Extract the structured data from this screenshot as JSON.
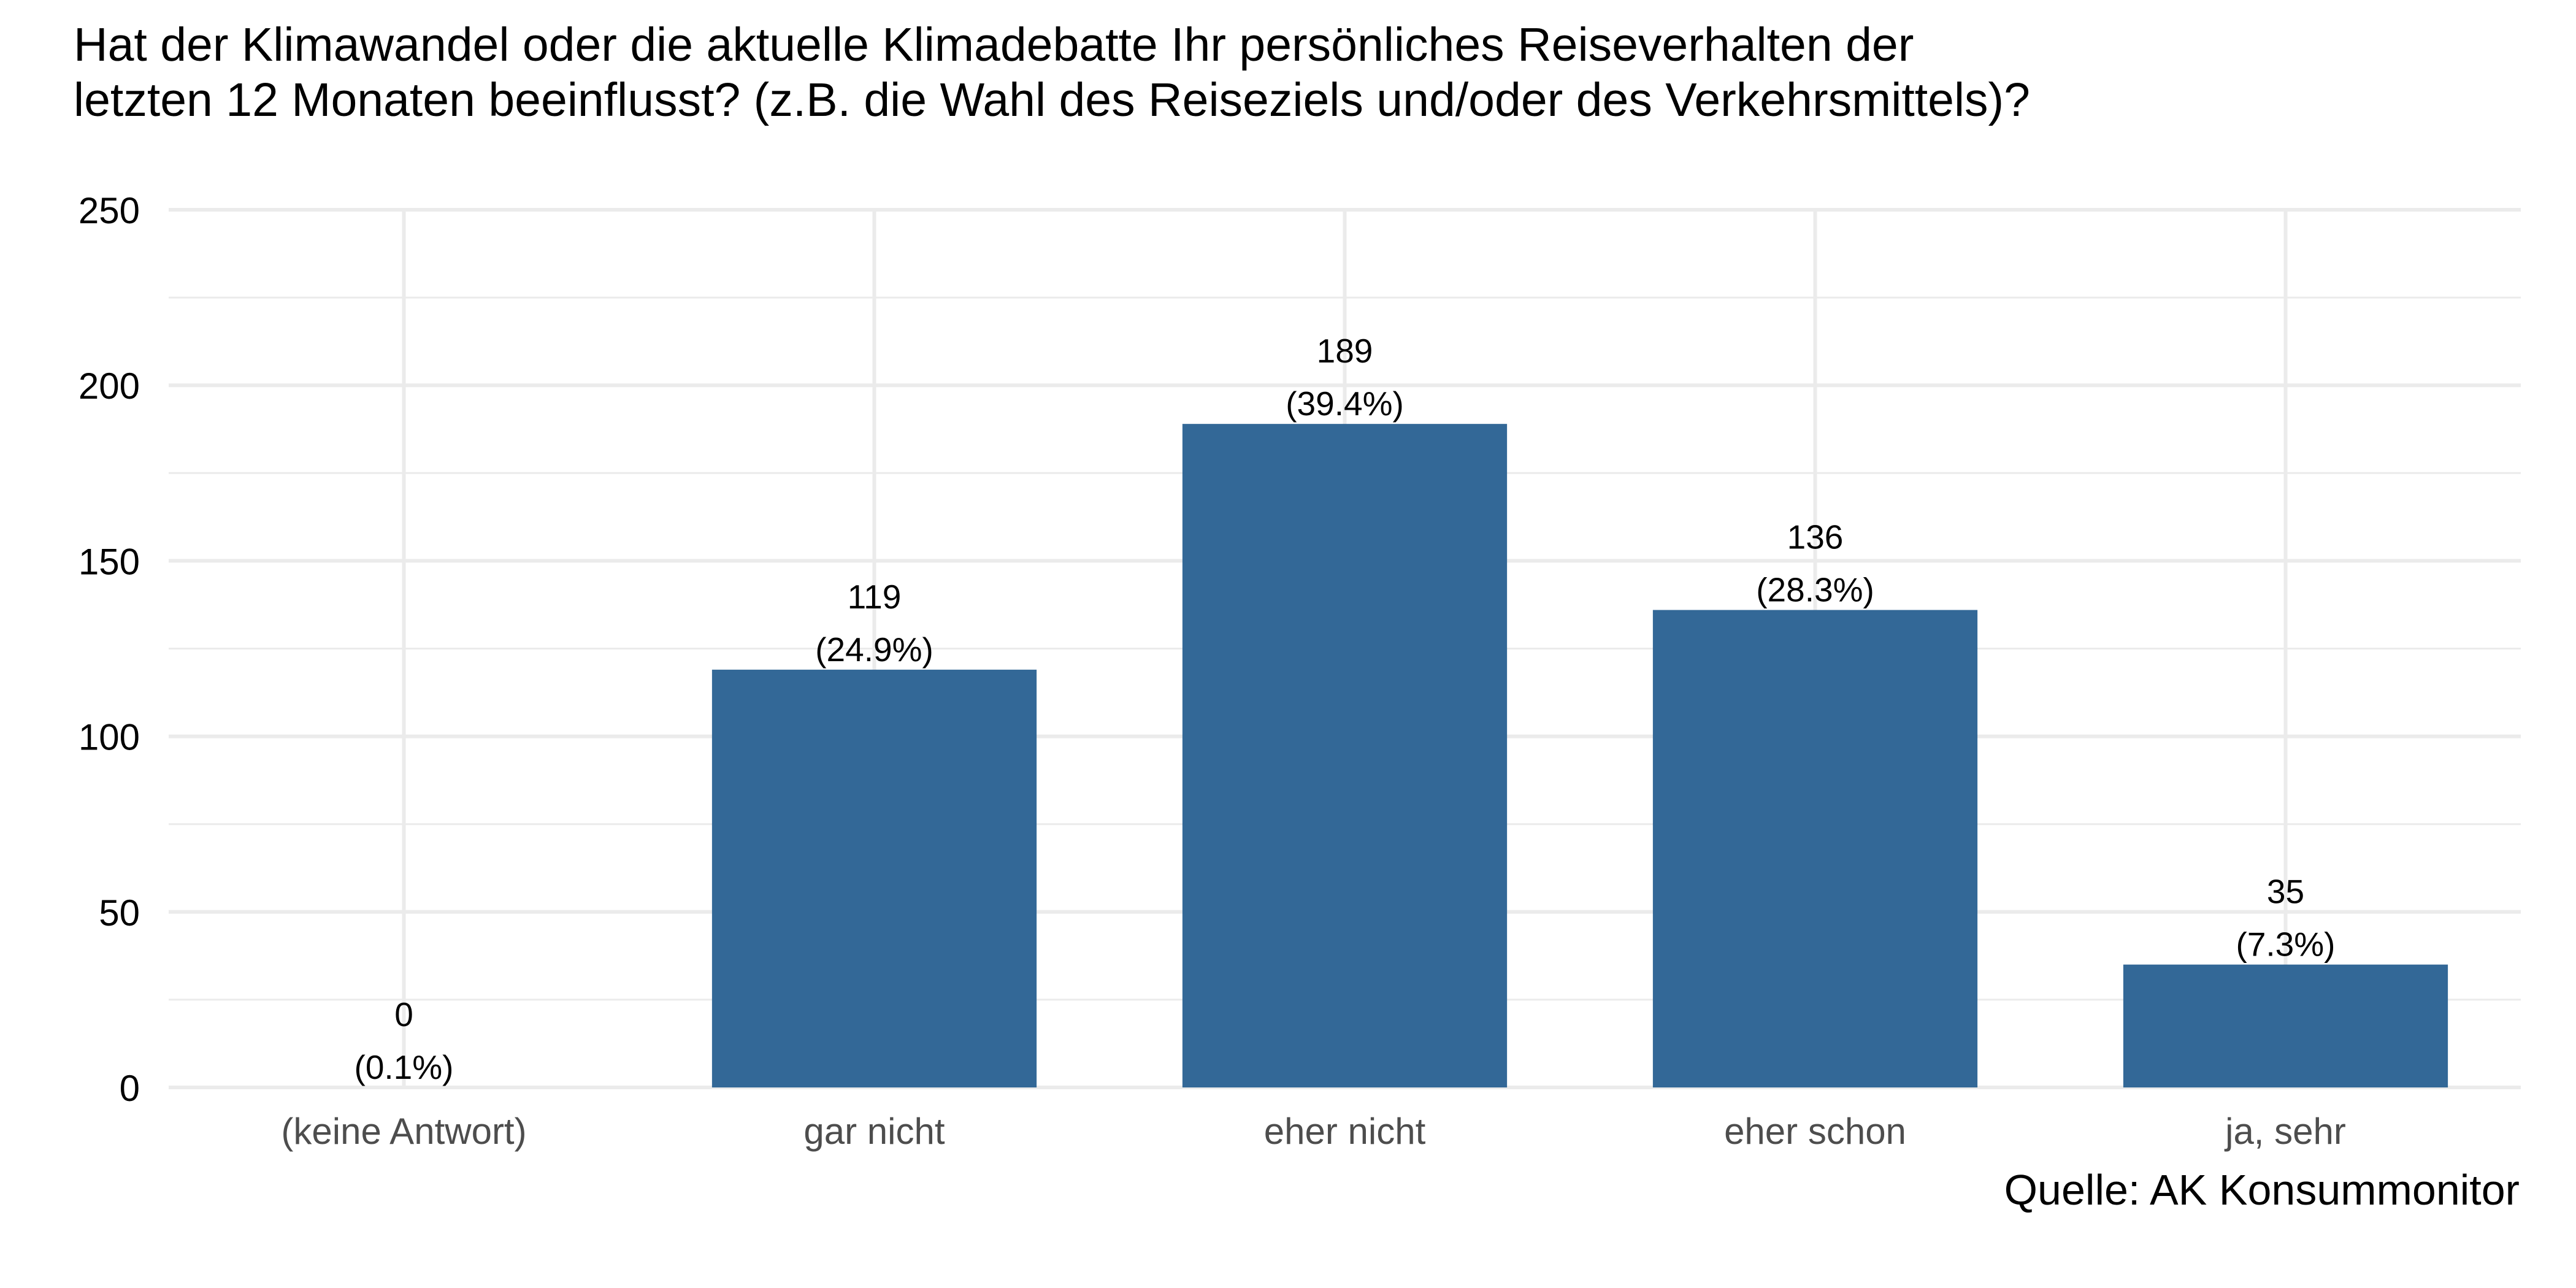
{
  "title_lines": [
    "Hat der Klimawandel oder die aktuelle Klimadebatte Ihr persönliches Reiseverhalten der",
    "letzten 12 Monaten beeinflusst? (z.B. die Wahl des Reiseziels und/oder des Verkehrsmittels)?"
  ],
  "caption": "Quelle: AK Konsummonitor",
  "colors": {
    "bar": "#336897",
    "grid": "#ebebeb",
    "axis_text": "#4d4d4d"
  },
  "chart_data": {
    "type": "bar",
    "title": "Hat der Klimawandel oder die aktuelle Klimadebatte Ihr persönliches Reiseverhalten der letzten 12 Monaten beeinflusst? (z.B. die Wahl des Reiseziels und/oder des Verkehrsmittels)?",
    "categories": [
      "(keine Antwort)",
      "gar nicht",
      "eher nicht",
      "eher schon",
      "ja, sehr"
    ],
    "values": [
      0,
      119,
      189,
      136,
      35
    ],
    "percent_labels": [
      "(0.1%)",
      "(24.9%)",
      "(39.4%)",
      "(28.3%)",
      "(7.3%)"
    ],
    "xlabel": "",
    "ylabel": "",
    "ylim": [
      0,
      250
    ],
    "yticks": [
      0,
      50,
      100,
      150,
      200,
      250
    ],
    "grid": true,
    "legend": "none"
  }
}
